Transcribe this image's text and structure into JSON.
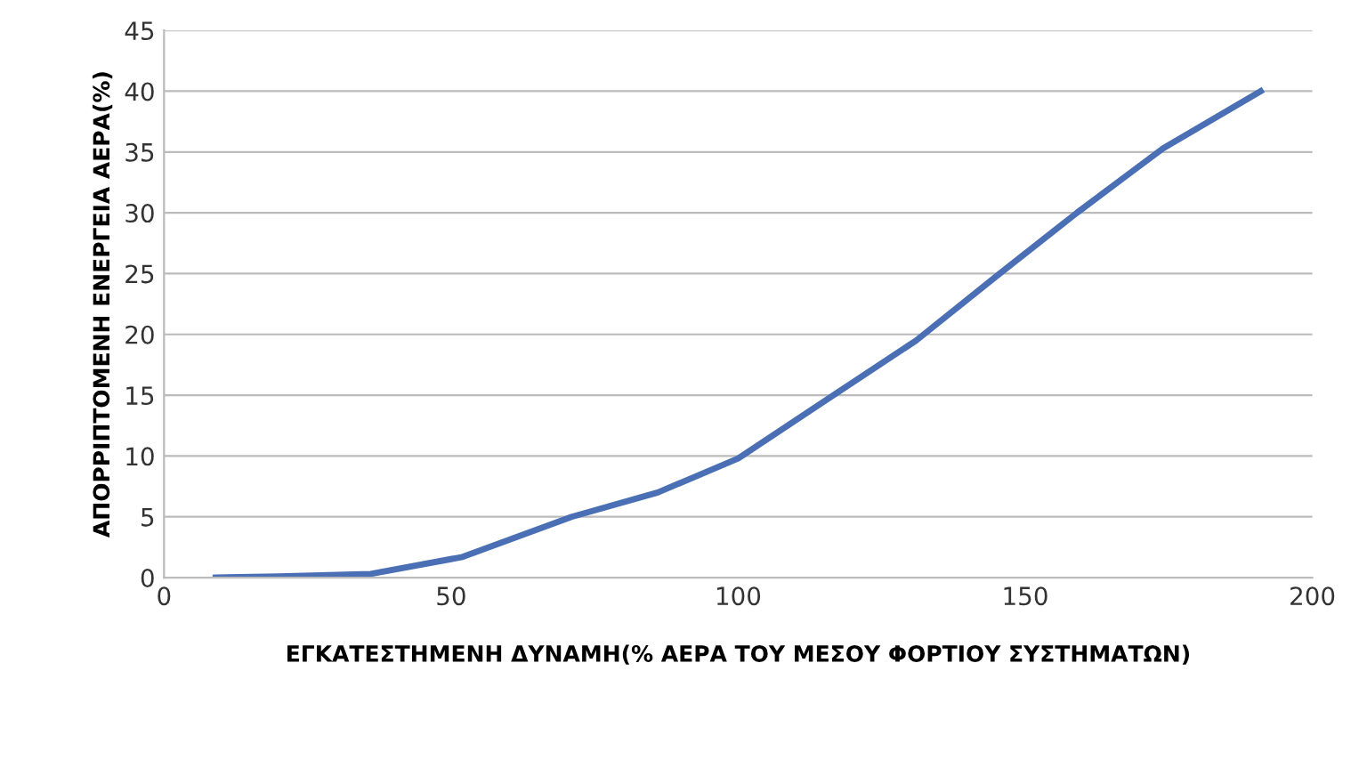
{
  "chart_data": {
    "type": "line",
    "xlabel": "ΕΓΚΑΤΕΣΤΗΜΕΝΗ ΔΥΝΑΜΗ(% ΑΕΡΑ ΤΟΥ ΜΕΣΟΥ ΦΟΡΤΙΟΥ ΣΥΣΤΗΜΑΤΩΝ)",
    "ylabel": "ΑΠΟΡΡΙΠΤΟΜΕΝΗ ΕΝΕΡΓΕΙΑ ΑΕΡΑ(%)",
    "x": [
      9,
      20,
      36,
      52,
      71,
      86,
      100,
      115,
      131,
      145,
      159,
      174,
      191
    ],
    "series": [
      {
        "color": "#4a6fb5",
        "values": [
          0,
          0.1,
          0.3,
          1.7,
          5,
          7,
          9.8,
          14.5,
          19.5,
          24.8,
          30,
          35.3,
          40
        ]
      }
    ],
    "xlim": [
      0,
      200
    ],
    "xticks": [
      0,
      50,
      100,
      150,
      200
    ],
    "ylim": [
      0,
      45
    ],
    "yticks": [
      0,
      5,
      10,
      15,
      20,
      25,
      30,
      35,
      40,
      45
    ],
    "grid": "y",
    "marker": "none",
    "line_style": "solid"
  }
}
